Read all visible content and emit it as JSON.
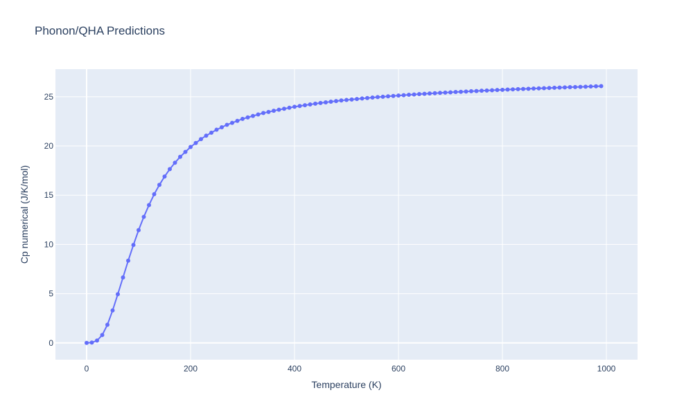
{
  "chart_data": {
    "type": "line",
    "title": "Phonon/QHA Predictions",
    "xlabel": "Temperature (K)",
    "ylabel": "Cp numerical (J/K/mol)",
    "xlim": [
      -60,
      1060
    ],
    "ylim": [
      -1.7,
      27.8
    ],
    "xticks": [
      0,
      200,
      400,
      600,
      800,
      1000
    ],
    "xtick_labels": [
      "0",
      "200",
      "400",
      "600",
      "800",
      "1000"
    ],
    "yticks": [
      0,
      5,
      10,
      15,
      20,
      25
    ],
    "ytick_labels": [
      "0",
      "5",
      "10",
      "15",
      "20",
      "25"
    ],
    "grid": true,
    "legend": "none",
    "colors": {
      "plot_bg": "#e5ecf6",
      "grid": "#ffffff",
      "series": "#636efa",
      "text": "#2a3f5f"
    },
    "series": [
      {
        "mode": "lines+markers",
        "x": [
          0,
          10,
          20,
          30,
          40,
          50,
          60,
          70,
          80,
          90,
          100,
          110,
          120,
          130,
          140,
          150,
          160,
          170,
          180,
          190,
          200,
          210,
          220,
          230,
          240,
          250,
          260,
          270,
          280,
          290,
          300,
          310,
          320,
          330,
          340,
          350,
          360,
          370,
          380,
          390,
          400,
          410,
          420,
          430,
          440,
          450,
          460,
          470,
          480,
          490,
          500,
          510,
          520,
          530,
          540,
          550,
          560,
          570,
          580,
          590,
          600,
          610,
          620,
          630,
          640,
          650,
          660,
          670,
          680,
          690,
          700,
          710,
          720,
          730,
          740,
          750,
          760,
          770,
          780,
          790,
          800,
          810,
          820,
          830,
          840,
          850,
          860,
          870,
          880,
          890,
          900,
          910,
          920,
          930,
          940,
          950,
          960,
          970,
          980,
          990
        ],
        "y": [
          0,
          0.04,
          0.24,
          0.8,
          1.85,
          3.3,
          4.95,
          6.65,
          8.35,
          9.95,
          11.45,
          12.8,
          14.0,
          15.1,
          16.05,
          16.9,
          17.65,
          18.3,
          18.9,
          19.4,
          19.9,
          20.3,
          20.7,
          21.05,
          21.35,
          21.65,
          21.9,
          22.15,
          22.35,
          22.55,
          22.75,
          22.9,
          23.05,
          23.2,
          23.35,
          23.45,
          23.58,
          23.68,
          23.78,
          23.88,
          23.98,
          24.06,
          24.14,
          24.22,
          24.3,
          24.37,
          24.43,
          24.5,
          24.56,
          24.62,
          24.67,
          24.72,
          24.77,
          24.82,
          24.87,
          24.92,
          24.96,
          25.0,
          25.04,
          25.08,
          25.12,
          25.16,
          25.2,
          25.23,
          25.27,
          25.3,
          25.33,
          25.36,
          25.39,
          25.42,
          25.45,
          25.48,
          25.5,
          25.53,
          25.56,
          25.58,
          25.61,
          25.63,
          25.66,
          25.68,
          25.7,
          25.73,
          25.75,
          25.77,
          25.79,
          25.81,
          25.83,
          25.85,
          25.87,
          25.89,
          25.91,
          25.93,
          25.95,
          25.97,
          25.98,
          26.0,
          26.02,
          26.04,
          26.06,
          26.08
        ]
      }
    ]
  }
}
